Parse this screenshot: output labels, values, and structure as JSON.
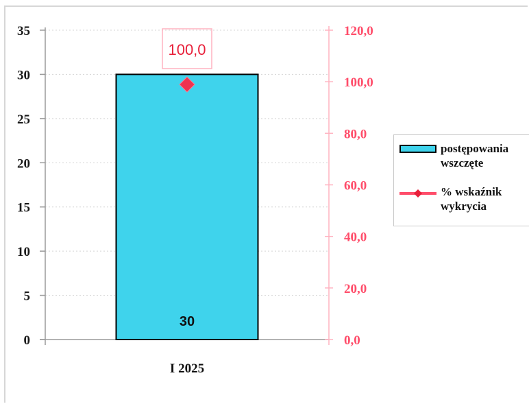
{
  "chart_data": {
    "type": "bar",
    "categories": [
      "I 2025"
    ],
    "series": [
      {
        "name": "postępowania wszczęte",
        "type": "bar",
        "axis": "left",
        "values": [
          30
        ],
        "labels": [
          "30"
        ],
        "color": "#3fd3ec"
      },
      {
        "name": "% wskaźnik wykrycia",
        "type": "line",
        "axis": "right",
        "values": [
          100.0
        ],
        "labels": [
          "100,0"
        ],
        "color": "#e8203a"
      }
    ],
    "y_left": {
      "min": 0,
      "max": 35,
      "ticks": [
        "0",
        "5",
        "10",
        "15",
        "20",
        "25",
        "30",
        "35"
      ]
    },
    "y_right": {
      "min": 0,
      "max": 120,
      "ticks": [
        "0,0",
        "20,0",
        "40,0",
        "60,0",
        "80,0",
        "100,0",
        "120,0"
      ]
    },
    "grid": true,
    "legend": {
      "placement": "right",
      "bar_label_lines": [
        "postępowania",
        "wszczęte"
      ],
      "line_label_lines": [
        "% wskaźnik",
        "wykrycia"
      ]
    }
  }
}
